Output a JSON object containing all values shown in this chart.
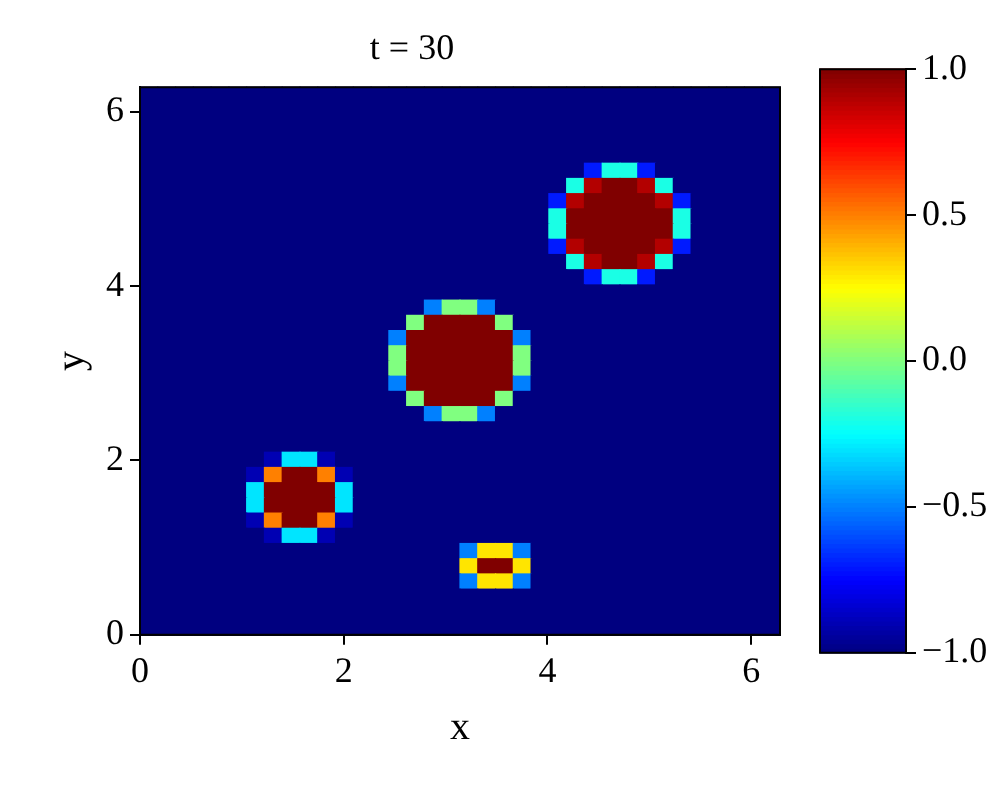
{
  "chart_data": {
    "type": "heatmap",
    "title": "t = 30",
    "xlabel": "x",
    "ylabel": "y",
    "xlim": [
      0,
      6.283
    ],
    "ylim": [
      0,
      6.283
    ],
    "xticks": [
      0,
      2,
      4,
      6
    ],
    "yticks": [
      0,
      2,
      4,
      6
    ],
    "clim": [
      -1,
      1
    ],
    "cticks": [
      {
        "value": -1,
        "label": "−1.0"
      },
      {
        "value": -0.5,
        "label": "−0.5"
      },
      {
        "value": 0,
        "label": "0.0"
      },
      {
        "value": 0.5,
        "label": "0.5"
      },
      {
        "value": 1,
        "label": "1.0"
      }
    ],
    "cells": [
      [
        -1,
        -1,
        -1,
        -1,
        -1,
        -1,
        -1,
        -1,
        -1,
        -1,
        -1,
        -1,
        -1,
        -1,
        -1,
        -1,
        -1,
        -1,
        -1,
        -1,
        -1,
        -1,
        -1,
        -1,
        -1,
        -1,
        -1,
        -1,
        -1,
        -1,
        -1,
        -1,
        -1,
        -1,
        -1,
        -1
      ],
      [
        -1,
        -1,
        -1,
        -1,
        -1,
        -1,
        -1,
        -1,
        -1,
        -1,
        -1,
        -1,
        -1,
        -1,
        -1,
        -1,
        -1,
        -1,
        -1,
        -1,
        -1,
        -1,
        -1,
        -1,
        -1,
        -1,
        -1,
        -1,
        -1,
        -1,
        -1,
        -1,
        -1,
        -1,
        -1,
        -1
      ],
      [
        -1,
        -1,
        -1,
        -1,
        -1,
        -1,
        -1,
        -1,
        -1,
        -1,
        -1,
        -1,
        -1,
        -1,
        -1,
        -1,
        -1,
        -1,
        -1,
        -1,
        -1,
        -1,
        -1,
        -1,
        -1,
        -1,
        -1,
        -1,
        -1,
        -1,
        -1,
        -1,
        -1,
        -1,
        -1,
        -1
      ],
      [
        -1,
        -1,
        -1,
        -1,
        -1,
        -1,
        -1,
        -1,
        -1,
        -1,
        -1,
        -1,
        -1,
        -1,
        -1,
        -1,
        -1,
        -1,
        -1,
        -1,
        -1,
        -1,
        -1,
        -1,
        -1,
        -1,
        -1,
        -1,
        -1,
        -1,
        -1,
        -1,
        -1,
        -1,
        -1,
        -1
      ],
      [
        -1,
        -1,
        -1,
        -1,
        -1,
        -1,
        -1,
        -1,
        -1,
        -1,
        -1,
        -1,
        -1,
        -1,
        -1,
        -1,
        -1,
        -1,
        -1,
        -1,
        -1,
        -1,
        -1,
        -1,
        -1,
        -1,
        -1,
        -1,
        -1,
        -1,
        -1,
        -1,
        -1,
        -1,
        -1,
        -1
      ],
      [
        -1,
        -1,
        -1,
        -1,
        -1,
        -1,
        -1,
        -1,
        -1,
        -1,
        -1,
        -1,
        -1,
        -1,
        -1,
        -1,
        -1,
        -1,
        -1,
        -1,
        -1,
        -1,
        -1,
        -1,
        -1,
        -0.7,
        -0.2,
        -0.2,
        -0.7,
        -1,
        -1,
        -1,
        -1,
        -1,
        -1,
        -1
      ],
      [
        -1,
        -1,
        -1,
        -1,
        -1,
        -1,
        -1,
        -1,
        -1,
        -1,
        -1,
        -1,
        -1,
        -1,
        -1,
        -1,
        -1,
        -1,
        -1,
        -1,
        -1,
        -1,
        -1,
        -1,
        -0.2,
        0.9,
        1,
        1,
        0.9,
        -0.2,
        -1,
        -1,
        -1,
        -1,
        -1,
        -1
      ],
      [
        -1,
        -1,
        -1,
        -1,
        -1,
        -1,
        -1,
        -1,
        -1,
        -1,
        -1,
        -1,
        -1,
        -1,
        -1,
        -1,
        -1,
        -1,
        -1,
        -1,
        -1,
        -1,
        -1,
        -0.7,
        0.9,
        1,
        1,
        1,
        1,
        0.9,
        -0.7,
        -1,
        -1,
        -1,
        -1,
        -1
      ],
      [
        -1,
        -1,
        -1,
        -1,
        -1,
        -1,
        -1,
        -1,
        -1,
        -1,
        -1,
        -1,
        -1,
        -1,
        -1,
        -1,
        -1,
        -1,
        -1,
        -1,
        -1,
        -1,
        -1,
        -0.2,
        1,
        1,
        1,
        1,
        1,
        1,
        -0.2,
        -1,
        -1,
        -1,
        -1,
        -1
      ],
      [
        -1,
        -1,
        -1,
        -1,
        -1,
        -1,
        -1,
        -1,
        -1,
        -1,
        -1,
        -1,
        -1,
        -1,
        -1,
        -1,
        -1,
        -1,
        -1,
        -1,
        -1,
        -1,
        -1,
        -0.2,
        1,
        1,
        1,
        1,
        1,
        1,
        -0.2,
        -1,
        -1,
        -1,
        -1,
        -1
      ],
      [
        -1,
        -1,
        -1,
        -1,
        -1,
        -1,
        -1,
        -1,
        -1,
        -1,
        -1,
        -1,
        -1,
        -1,
        -1,
        -1,
        -1,
        -1,
        -1,
        -1,
        -1,
        -1,
        -1,
        -0.7,
        0.9,
        1,
        1,
        1,
        1,
        0.9,
        -0.7,
        -1,
        -1,
        -1,
        -1,
        -1
      ],
      [
        -1,
        -1,
        -1,
        -1,
        -1,
        -1,
        -1,
        -1,
        -1,
        -1,
        -1,
        -1,
        -1,
        -1,
        -1,
        -1,
        -1,
        -1,
        -1,
        -1,
        -1,
        -1,
        -1,
        -1,
        -0.2,
        0.9,
        1,
        1,
        0.9,
        -0.2,
        -1,
        -1,
        -1,
        -1,
        -1,
        -1
      ],
      [
        -1,
        -1,
        -1,
        -1,
        -1,
        -1,
        -1,
        -1,
        -1,
        -1,
        -1,
        -1,
        -1,
        -1,
        -1,
        -1,
        -1,
        -1,
        -1,
        -1,
        -1,
        -1,
        -1,
        -1,
        -1,
        -0.7,
        -0.2,
        -0.2,
        -0.7,
        -1,
        -1,
        -1,
        -1,
        -1,
        -1,
        -1
      ],
      [
        -1,
        -1,
        -1,
        -1,
        -1,
        -1,
        -1,
        -1,
        -1,
        -1,
        -1,
        -1,
        -1,
        -1,
        -1,
        -1,
        -1,
        -1,
        -1,
        -1,
        -1,
        -1,
        -1,
        -1,
        -1,
        -1,
        -1,
        -1,
        -1,
        -1,
        -1,
        -1,
        -1,
        -1,
        -1,
        -1
      ],
      [
        -1,
        -1,
        -1,
        -1,
        -1,
        -1,
        -1,
        -1,
        -1,
        -1,
        -1,
        -1,
        -1,
        -1,
        -1,
        -1,
        -0.5,
        0,
        0,
        -0.5,
        -1,
        -1,
        -1,
        -1,
        -1,
        -1,
        -1,
        -1,
        -1,
        -1,
        -1,
        -1,
        -1,
        -1,
        -1,
        -1
      ],
      [
        -1,
        -1,
        -1,
        -1,
        -1,
        -1,
        -1,
        -1,
        -1,
        -1,
        -1,
        -1,
        -1,
        -1,
        -1,
        0,
        1,
        1,
        1,
        1,
        0,
        -1,
        -1,
        -1,
        -1,
        -1,
        -1,
        -1,
        -1,
        -1,
        -1,
        -1,
        -1,
        -1,
        -1,
        -1
      ],
      [
        -1,
        -1,
        -1,
        -1,
        -1,
        -1,
        -1,
        -1,
        -1,
        -1,
        -1,
        -1,
        -1,
        -1,
        -0.5,
        1,
        1,
        1,
        1,
        1,
        1,
        -0.5,
        -1,
        -1,
        -1,
        -1,
        -1,
        -1,
        -1,
        -1,
        -1,
        -1,
        -1,
        -1,
        -1,
        -1
      ],
      [
        -1,
        -1,
        -1,
        -1,
        -1,
        -1,
        -1,
        -1,
        -1,
        -1,
        -1,
        -1,
        -1,
        -1,
        0,
        1,
        1,
        1,
        1,
        1,
        1,
        0,
        -1,
        -1,
        -1,
        -1,
        -1,
        -1,
        -1,
        -1,
        -1,
        -1,
        -1,
        -1,
        -1,
        -1
      ],
      [
        -1,
        -1,
        -1,
        -1,
        -1,
        -1,
        -1,
        -1,
        -1,
        -1,
        -1,
        -1,
        -1,
        -1,
        0,
        1,
        1,
        1,
        1,
        1,
        1,
        0,
        -1,
        -1,
        -1,
        -1,
        -1,
        -1,
        -1,
        -1,
        -1,
        -1,
        -1,
        -1,
        -1,
        -1
      ],
      [
        -1,
        -1,
        -1,
        -1,
        -1,
        -1,
        -1,
        -1,
        -1,
        -1,
        -1,
        -1,
        -1,
        -1,
        -0.5,
        1,
        1,
        1,
        1,
        1,
        1,
        -0.5,
        -1,
        -1,
        -1,
        -1,
        -1,
        -1,
        -1,
        -1,
        -1,
        -1,
        -1,
        -1,
        -1,
        -1
      ],
      [
        -1,
        -1,
        -1,
        -1,
        -1,
        -1,
        -1,
        -1,
        -1,
        -1,
        -1,
        -1,
        -1,
        -1,
        -1,
        0,
        1,
        1,
        1,
        1,
        0,
        -1,
        -1,
        -1,
        -1,
        -1,
        -1,
        -1,
        -1,
        -1,
        -1,
        -1,
        -1,
        -1,
        -1,
        -1
      ],
      [
        -1,
        -1,
        -1,
        -1,
        -1,
        -1,
        -1,
        -1,
        -1,
        -1,
        -1,
        -1,
        -1,
        -1,
        -1,
        -1,
        -0.5,
        0,
        0,
        -0.5,
        -1,
        -1,
        -1,
        -1,
        -1,
        -1,
        -1,
        -1,
        -1,
        -1,
        -1,
        -1,
        -1,
        -1,
        -1,
        -1
      ],
      [
        -1,
        -1,
        -1,
        -1,
        -1,
        -1,
        -1,
        -1,
        -1,
        -1,
        -1,
        -1,
        -1,
        -1,
        -1,
        -1,
        -1,
        -1,
        -1,
        -1,
        -1,
        -1,
        -1,
        -1,
        -1,
        -1,
        -1,
        -1,
        -1,
        -1,
        -1,
        -1,
        -1,
        -1,
        -1,
        -1
      ],
      [
        -1,
        -1,
        -1,
        -1,
        -1,
        -1,
        -1,
        -1,
        -1,
        -1,
        -1,
        -1,
        -1,
        -1,
        -1,
        -1,
        -1,
        -1,
        -1,
        -1,
        -1,
        -1,
        -1,
        -1,
        -1,
        -1,
        -1,
        -1,
        -1,
        -1,
        -1,
        -1,
        -1,
        -1,
        -1,
        -1
      ],
      [
        -1,
        -1,
        -1,
        -1,
        -1,
        -1,
        -1,
        -0.9,
        -0.3,
        -0.3,
        -0.9,
        -1,
        -1,
        -1,
        -1,
        -1,
        -1,
        -1,
        -1,
        -1,
        -1,
        -1,
        -1,
        -1,
        -1,
        -1,
        -1,
        -1,
        -1,
        -1,
        -1,
        -1,
        -1,
        -1,
        -1,
        -1
      ],
      [
        -1,
        -1,
        -1,
        -1,
        -1,
        -1,
        -0.9,
        0.5,
        1,
        1,
        0.5,
        -0.9,
        -1,
        -1,
        -1,
        -1,
        -1,
        -1,
        -1,
        -1,
        -1,
        -1,
        -1,
        -1,
        -1,
        -1,
        -1,
        -1,
        -1,
        -1,
        -1,
        -1,
        -1,
        -1,
        -1,
        -1
      ],
      [
        -1,
        -1,
        -1,
        -1,
        -1,
        -1,
        -0.3,
        1,
        1,
        1,
        1,
        -0.3,
        -1,
        -1,
        -1,
        -1,
        -1,
        -1,
        -1,
        -1,
        -1,
        -1,
        -1,
        -1,
        -1,
        -1,
        -1,
        -1,
        -1,
        -1,
        -1,
        -1,
        -1,
        -1,
        -1,
        -1
      ],
      [
        -1,
        -1,
        -1,
        -1,
        -1,
        -1,
        -0.3,
        1,
        1,
        1,
        1,
        -0.3,
        -1,
        -1,
        -1,
        -1,
        -1,
        -1,
        -1,
        -1,
        -1,
        -1,
        -1,
        -1,
        -1,
        -1,
        -1,
        -1,
        -1,
        -1,
        -1,
        -1,
        -1,
        -1,
        -1,
        -1
      ],
      [
        -1,
        -1,
        -1,
        -1,
        -1,
        -1,
        -0.9,
        0.5,
        1,
        1,
        0.5,
        -0.9,
        -1,
        -1,
        -1,
        -1,
        -1,
        -1,
        -1,
        -1,
        -1,
        -1,
        -1,
        -1,
        -1,
        -1,
        -1,
        -1,
        -1,
        -1,
        -1,
        -1,
        -1,
        -1,
        -1,
        -1
      ],
      [
        -1,
        -1,
        -1,
        -1,
        -1,
        -1,
        -1,
        -0.9,
        -0.3,
        -0.3,
        -0.9,
        -1,
        -1,
        -1,
        -1,
        -1,
        -1,
        -1,
        -1,
        -1,
        -1,
        -1,
        -1,
        -1,
        -1,
        -1,
        -1,
        -1,
        -1,
        -1,
        -1,
        -1,
        -1,
        -1,
        -1,
        -1
      ],
      [
        -1,
        -1,
        -1,
        -1,
        -1,
        -1,
        -1,
        -1,
        -1,
        -1,
        -1,
        -1,
        -1,
        -1,
        -1,
        -1,
        -1,
        -1,
        -0.5,
        0.3,
        0.3,
        -0.5,
        -1,
        -1,
        -1,
        -1,
        -1,
        -1,
        -1,
        -1,
        -1,
        -1,
        -1,
        -1,
        -1,
        -1
      ],
      [
        -1,
        -1,
        -1,
        -1,
        -1,
        -1,
        -1,
        -1,
        -1,
        -1,
        -1,
        -1,
        -1,
        -1,
        -1,
        -1,
        -1,
        -1,
        0.3,
        1,
        1,
        0.3,
        -1,
        -1,
        -1,
        -1,
        -1,
        -1,
        -1,
        -1,
        -1,
        -1,
        -1,
        -1,
        -1,
        -1
      ],
      [
        -1,
        -1,
        -1,
        -1,
        -1,
        -1,
        -1,
        -1,
        -1,
        -1,
        -1,
        -1,
        -1,
        -1,
        -1,
        -1,
        -1,
        -1,
        -0.5,
        0.3,
        0.3,
        -0.5,
        -1,
        -1,
        -1,
        -1,
        -1,
        -1,
        -1,
        -1,
        -1,
        -1,
        -1,
        -1,
        -1,
        -1
      ],
      [
        -1,
        -1,
        -1,
        -1,
        -1,
        -1,
        -1,
        -1,
        -1,
        -1,
        -1,
        -1,
        -1,
        -1,
        -1,
        -1,
        -1,
        -1,
        -1,
        -1,
        -1,
        -1,
        -1,
        -1,
        -1,
        -1,
        -1,
        -1,
        -1,
        -1,
        -1,
        -1,
        -1,
        -1,
        -1,
        -1
      ],
      [
        -1,
        -1,
        -1,
        -1,
        -1,
        -1,
        -1,
        -1,
        -1,
        -1,
        -1,
        -1,
        -1,
        -1,
        -1,
        -1,
        -1,
        -1,
        -1,
        -1,
        -1,
        -1,
        -1,
        -1,
        -1,
        -1,
        -1,
        -1,
        -1,
        -1,
        -1,
        -1,
        -1,
        -1,
        -1,
        -1
      ],
      [
        -1,
        -1,
        -1,
        -1,
        -1,
        -1,
        -1,
        -1,
        -1,
        -1,
        -1,
        -1,
        -1,
        -1,
        -1,
        -1,
        -1,
        -1,
        -1,
        -1,
        -1,
        -1,
        -1,
        -1,
        -1,
        -1,
        -1,
        -1,
        -1,
        -1,
        -1,
        -1,
        -1,
        -1,
        -1,
        -1
      ]
    ]
  }
}
